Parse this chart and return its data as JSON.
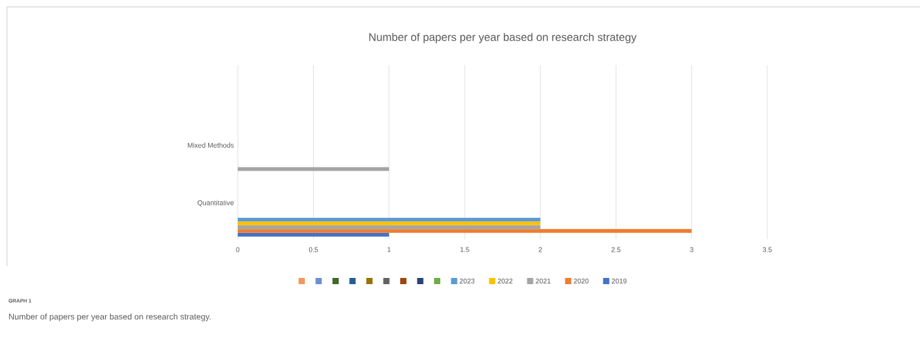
{
  "chart_data": {
    "type": "bar",
    "orientation": "horizontal",
    "title": "Number of papers per year based on research strategy",
    "categories": [
      "Mixed Methods",
      "Quantitative"
    ],
    "series": [
      {
        "name": "2019",
        "color": "#4472c4",
        "values": [
          null,
          1
        ]
      },
      {
        "name": "2020",
        "color": "#ed7d31",
        "values": [
          null,
          3
        ]
      },
      {
        "name": "2021",
        "color": "#a5a5a5",
        "values": [
          1,
          2
        ]
      },
      {
        "name": "2022",
        "color": "#ffc000",
        "values": [
          null,
          2
        ]
      },
      {
        "name": "2023",
        "color": "#5b9bd5",
        "values": [
          null,
          2
        ]
      },
      {
        "color": "#70ad47",
        "values": [
          null,
          null
        ]
      },
      {
        "color": "#264478",
        "values": [
          null,
          null
        ]
      },
      {
        "color": "#9e480e",
        "values": [
          null,
          null
        ]
      },
      {
        "color": "#636363",
        "values": [
          null,
          null
        ]
      },
      {
        "color": "#997300",
        "values": [
          null,
          null
        ]
      },
      {
        "color": "#255e91",
        "values": [
          null,
          null
        ]
      },
      {
        "color": "#43682b",
        "values": [
          null,
          null
        ]
      },
      {
        "color": "#6a8fd4",
        "values": [
          null,
          null
        ]
      },
      {
        "color": "#f4975d",
        "values": [
          null,
          null
        ]
      }
    ],
    "xlim": [
      0,
      3.5
    ],
    "xticks": [
      0,
      0.5,
      1,
      1.5,
      2,
      2.5,
      3,
      3.5
    ],
    "grid": "x",
    "legend": "bottom",
    "annotations": [
      "GRAPH 1",
      "Number of papers per year based on research strategy."
    ]
  }
}
